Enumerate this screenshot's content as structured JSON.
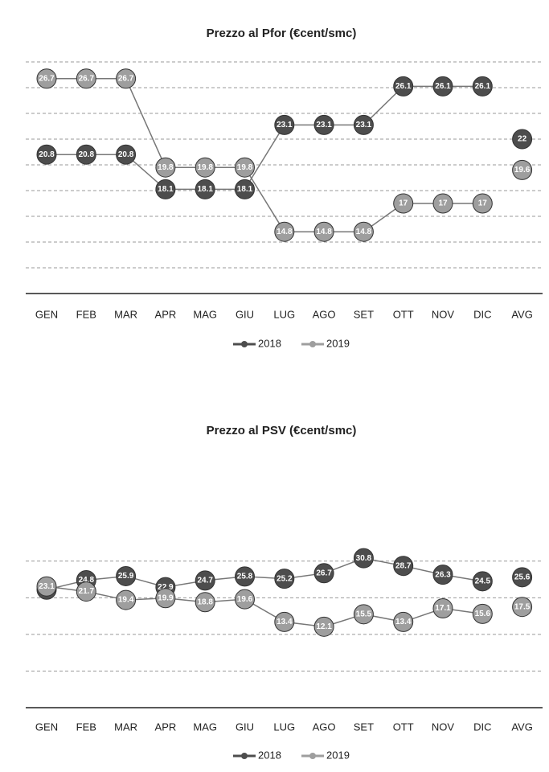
{
  "chart_data": [
    {
      "type": "line",
      "title": "Prezzo al Pfor (€cent/smc)",
      "categories": [
        "GEN",
        "FEB",
        "MAR",
        "APR",
        "MAG",
        "GIU",
        "LUG",
        "AGO",
        "SET",
        "OTT",
        "NOV",
        "DIC"
      ],
      "avg_label": "AVG",
      "series": [
        {
          "name": "2018",
          "color": "#4d4d4d",
          "values": [
            20.8,
            20.8,
            20.8,
            18.1,
            18.1,
            18.1,
            23.1,
            23.1,
            23.1,
            26.1,
            26.1,
            26.1
          ],
          "avg": 22.0
        },
        {
          "name": "2019",
          "color": "#9e9e9e",
          "values": [
            26.7,
            26.7,
            26.7,
            19.8,
            19.8,
            19.8,
            14.8,
            14.8,
            14.8,
            17.0,
            17.0,
            17.0
          ],
          "avg": 19.6
        }
      ],
      "ylim": [
        10,
        28
      ],
      "yticks": [
        12,
        14,
        16,
        18,
        20,
        22,
        24,
        26,
        28
      ],
      "grid": true,
      "legend": "bottom"
    },
    {
      "type": "line",
      "title": "Prezzo al PSV (€cent/smc)",
      "categories": [
        "GEN",
        "FEB",
        "MAR",
        "APR",
        "MAG",
        "GIU",
        "LUG",
        "AGO",
        "SET",
        "OTT",
        "NOV",
        "DIC"
      ],
      "avg_label": "AVG",
      "series": [
        {
          "name": "2018",
          "color": "#4d4d4d",
          "values": [
            22.2,
            24.8,
            25.9,
            22.9,
            24.7,
            25.8,
            25.2,
            26.7,
            30.8,
            28.7,
            26.3,
            24.5
          ],
          "avg": 25.6
        },
        {
          "name": "2019",
          "color": "#9e9e9e",
          "values": [
            23.1,
            21.7,
            19.4,
            19.9,
            18.8,
            19.6,
            13.4,
            12.1,
            15.5,
            13.4,
            17.1,
            15.6
          ],
          "avg": 17.5
        }
      ],
      "ylim": [
        -10,
        35
      ],
      "yticks": [
        0,
        10,
        20,
        30
      ],
      "grid": true,
      "legend": "bottom"
    }
  ]
}
